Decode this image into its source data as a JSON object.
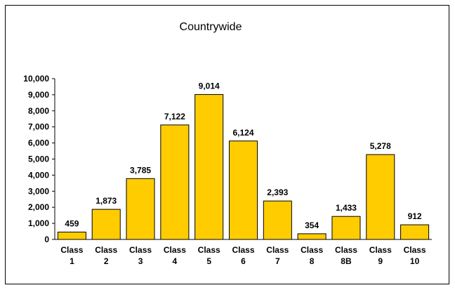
{
  "chart_data": {
    "type": "bar",
    "title": "Countrywide",
    "categories": [
      "Class 1",
      "Class 2",
      "Class 3",
      "Class 4",
      "Class 5",
      "Class 6",
      "Class 7",
      "Class 8",
      "Class 8B",
      "Class 9",
      "Class 10"
    ],
    "values": [
      459,
      1873,
      3785,
      7122,
      9014,
      6124,
      2393,
      354,
      1433,
      5278,
      912
    ],
    "value_labels": [
      "459",
      "1,873",
      "3,785",
      "7,122",
      "9,014",
      "6,124",
      "2,393",
      "354",
      "1,433",
      "5,278",
      "912"
    ],
    "color": "#ffcc00",
    "ylim": [
      0,
      10000
    ],
    "yticks": [
      0,
      {
        "value": 1000,
        "label": "1,000"
      },
      {
        "value": 2000,
        "label": "2,000"
      },
      {
        "value": 3000,
        "label": "3,000"
      },
      {
        "value": 4000,
        "label": "4,000"
      },
      {
        "value": 5000,
        "label": "5,000"
      },
      {
        "value": 6000,
        "label": "6,000"
      },
      {
        "value": 7000,
        "label": "7,000"
      },
      {
        "value": 8000,
        "label": "8,000"
      },
      {
        "value": 9000,
        "label": "9,000"
      },
      {
        "value": 10000,
        "label": "10,000"
      }
    ],
    "grid": false
  }
}
